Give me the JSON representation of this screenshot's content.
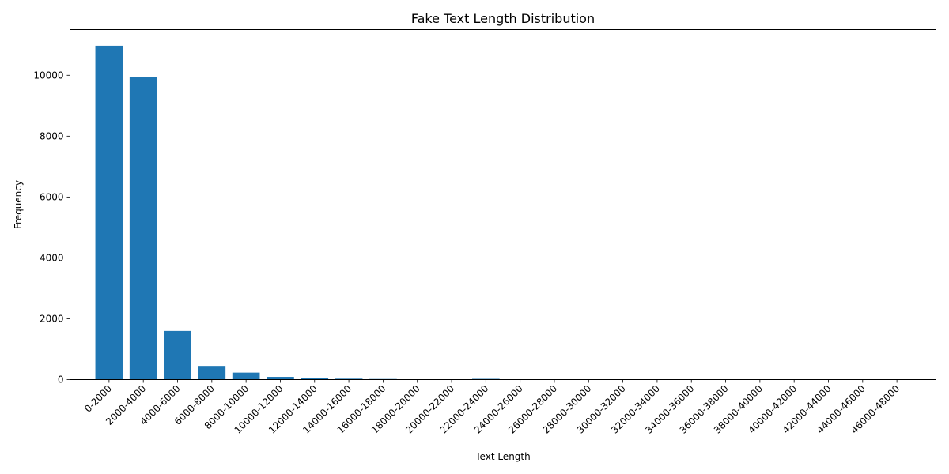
{
  "chart_data": {
    "type": "bar",
    "title": "Fake Text Length Distribution",
    "xlabel": "Text Length",
    "ylabel": "Frequency",
    "ylim": [
      0,
      11500
    ],
    "yticks": [
      0,
      2000,
      4000,
      6000,
      8000,
      10000
    ],
    "grid": false,
    "legend": "none",
    "bar_color": "#1f77b4",
    "categories": [
      "0-2000",
      "2000-4000",
      "4000-6000",
      "6000-8000",
      "8000-10000",
      "10000-12000",
      "12000-14000",
      "14000-16000",
      "16000-18000",
      "18000-20000",
      "20000-22000",
      "22000-24000",
      "24000-26000",
      "26000-28000",
      "28000-30000",
      "30000-32000",
      "32000-34000",
      "34000-36000",
      "36000-38000",
      "38000-40000",
      "40000-42000",
      "42000-44000",
      "44000-46000",
      "46000-48000"
    ],
    "values": [
      10970,
      9950,
      1600,
      450,
      230,
      90,
      50,
      30,
      20,
      5,
      5,
      25,
      3,
      2,
      2,
      1,
      1,
      1,
      1,
      1,
      1,
      1,
      1,
      1
    ]
  }
}
